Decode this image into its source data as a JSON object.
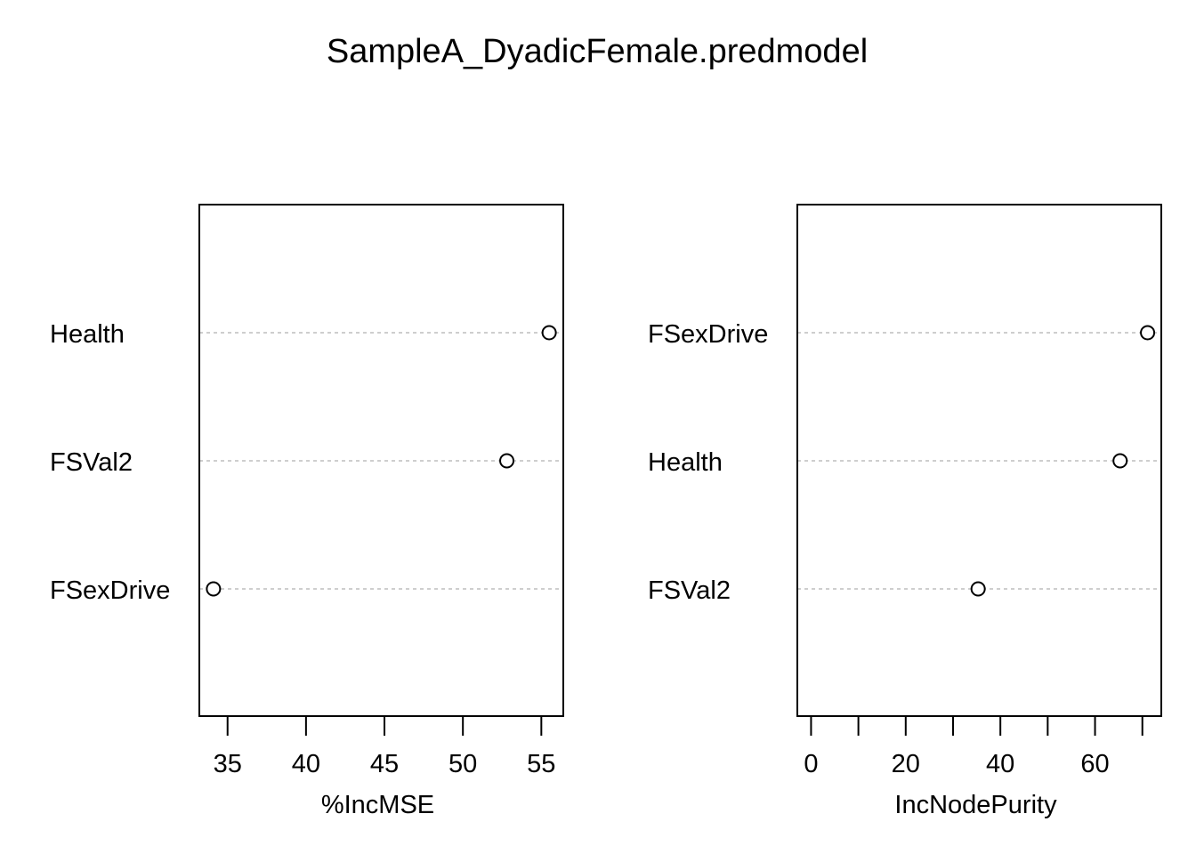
{
  "title": "SampleA_DyadicFemale.predmodel",
  "chart_data": [
    {
      "type": "scatter",
      "xlabel": "%IncMSE",
      "xlim": [
        33.2,
        56.4
      ],
      "xticks": [
        35,
        40,
        45,
        50,
        55
      ],
      "categories": [
        "Health",
        "FSVal2",
        "FSexDrive"
      ],
      "values": [
        55.5,
        52.8,
        34.1
      ],
      "grid": "dotted horizontal guide lines"
    },
    {
      "type": "scatter",
      "xlabel": "IncNodePurity",
      "xlim": [
        -2.9,
        74.0
      ],
      "xticks": [
        0,
        10,
        20,
        30,
        40,
        50,
        60,
        70
      ],
      "xtick_labels": [
        "0",
        "",
        "20",
        "",
        "40",
        "",
        "60",
        ""
      ],
      "categories": [
        "FSexDrive",
        "Health",
        "FSVal2"
      ],
      "values": [
        71.1,
        65.3,
        35.3
      ],
      "grid": "dotted horizontal guide lines"
    }
  ]
}
